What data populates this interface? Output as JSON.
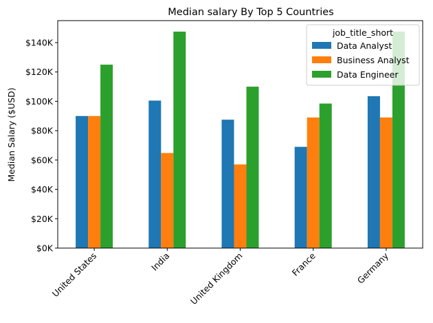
{
  "chart_data": {
    "type": "bar",
    "title": "Median salary By Top 5 Countries",
    "xlabel": "",
    "ylabel": "Median Salary ($USD)",
    "categories": [
      "United States",
      "India",
      "United Kingdom",
      "France",
      "Germany"
    ],
    "series": [
      {
        "name": "Data Analyst",
        "color": "#1f77b4",
        "values": [
          90000,
          100500,
          87500,
          69000,
          103500
        ]
      },
      {
        "name": "Business Analyst",
        "color": "#ff7f0e",
        "values": [
          90000,
          64800,
          57000,
          89000,
          89000
        ]
      },
      {
        "name": "Data Engineer",
        "color": "#2ca02c",
        "values": [
          125000,
          147500,
          110000,
          98500,
          147500
        ]
      }
    ],
    "ylim": [
      0,
      155000
    ],
    "yticks": [
      0,
      20000,
      40000,
      60000,
      80000,
      100000,
      120000,
      140000
    ],
    "ytick_labels": [
      "$0K",
      "$20K",
      "$40K",
      "$60K",
      "$80K",
      "$100K",
      "$120K",
      "$140K"
    ],
    "legend": {
      "title": "job_title_short",
      "placement": "top-right"
    },
    "grid": false
  }
}
